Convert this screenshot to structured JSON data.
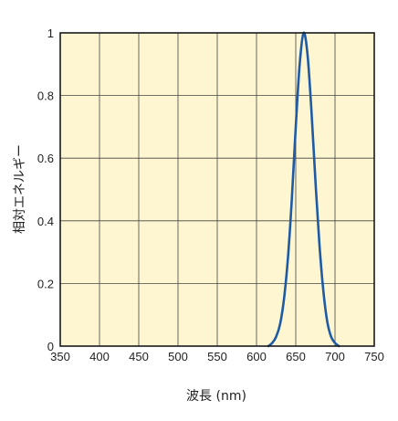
{
  "chart_data": {
    "type": "line",
    "xlabel": "波長 (nm)",
    "ylabel": "相対エネルギー",
    "xlim": [
      350,
      750
    ],
    "ylim": [
      0,
      1
    ],
    "x_ticks": [
      "350",
      "400",
      "450",
      "500",
      "550",
      "600",
      "650",
      "700",
      "750"
    ],
    "y_ticks": [
      "0",
      "0.2",
      "0.4",
      "0.6",
      "0.8",
      "1"
    ],
    "grid": true,
    "plot_background": "#fdf6d0",
    "line_color": "#1f5aa6",
    "series": [
      {
        "x": [
          615,
          620,
          625,
          630,
          635,
          640,
          645,
          650,
          655,
          660,
          665,
          670,
          675,
          680,
          685,
          690,
          695,
          700,
          705
        ],
        "y": [
          0.0,
          0.01,
          0.03,
          0.07,
          0.15,
          0.28,
          0.47,
          0.7,
          0.9,
          1.0,
          0.93,
          0.75,
          0.53,
          0.33,
          0.18,
          0.08,
          0.03,
          0.01,
          0.0
        ]
      }
    ]
  }
}
